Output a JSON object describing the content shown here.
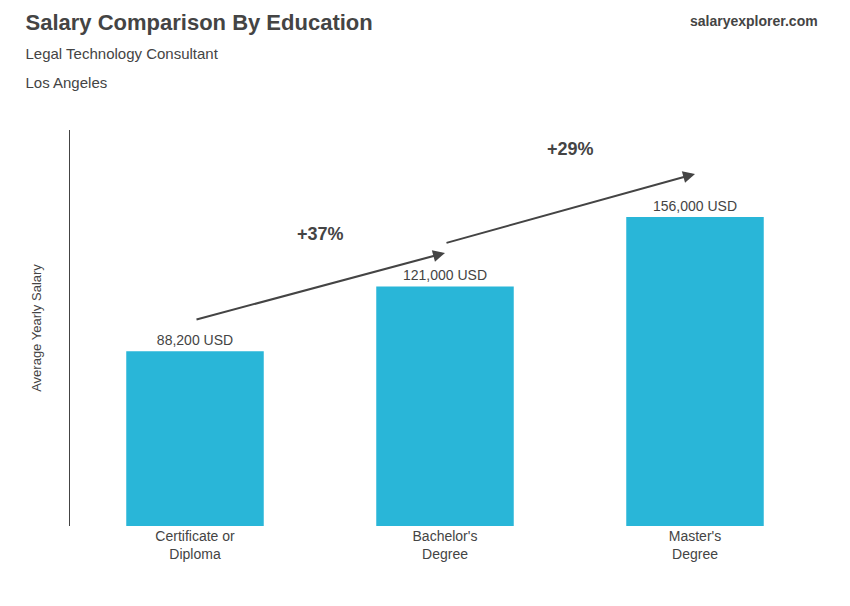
{
  "chart_data": {
    "type": "bar",
    "title": "Salary Comparison By Education",
    "subtitle": [
      "Legal Technology Consultant",
      "Los Angeles"
    ],
    "source": "salaryexplorer.com",
    "categories": [
      "Certificate or\nDiploma",
      "Bachelor's\nDegree",
      "Master's\nDegree"
    ],
    "values": [
      88200,
      121000,
      156000
    ],
    "value_labels": [
      "88,200 USD",
      "121,000 USD",
      "156,000 USD"
    ],
    "data_labels": true,
    "annotations": [
      "+37%",
      "+29%"
    ],
    "ylabel": "Average Yearly Salary",
    "ylim": [
      0,
      200000
    ],
    "tick_labels": "x",
    "grid": false,
    "color": "#29b6d8"
  }
}
